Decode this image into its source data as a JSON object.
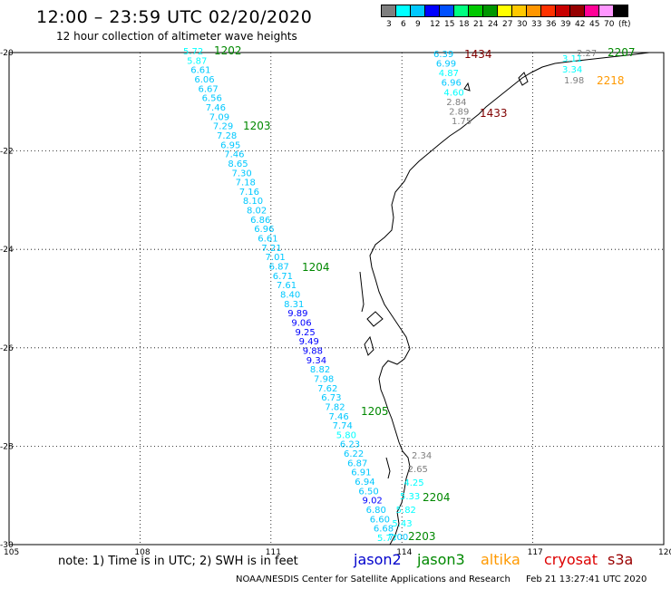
{
  "header": {
    "title": "12:00 – 23:59 UTC 02/20/2020",
    "subtitle": "12 hour collection of altimeter wave heights"
  },
  "legend": {
    "colors": [
      "#7f7f7f",
      "#00ffff",
      "#00c8ff",
      "#0000ff",
      "#0050ff",
      "#00ff80",
      "#00c800",
      "#009600",
      "#ffff00",
      "#ffc800",
      "#ff9600",
      "#ff3200",
      "#c80000",
      "#960000",
      "#ff0096",
      "#ff96ff",
      "#000000"
    ],
    "labels": [
      "3",
      "6",
      "9",
      "12",
      "15",
      "18",
      "21",
      "24",
      "27",
      "30",
      "33",
      "36",
      "39",
      "42",
      "45",
      "70",
      "(ft)"
    ]
  },
  "map": {
    "lon_ticks": [
      "105",
      "108",
      "111",
      "114",
      "117",
      "120"
    ],
    "lat_ticks": [
      "-20",
      "-22",
      "-24",
      "-26",
      "-28",
      "-30"
    ]
  },
  "tracks": {
    "main": {
      "values": [
        "5.72",
        "5.87",
        "6.61",
        "6.06",
        "6.67",
        "6.56",
        "7.46",
        "7.09",
        "7.29",
        "7.28",
        "6.95",
        "7.46",
        "8.65",
        "7.30",
        "7.18",
        "7.16",
        "8.10",
        "8.02",
        "6.86",
        "6.96",
        "6.61",
        "7.21",
        "7.01",
        "6.87",
        "6.71",
        "7.61",
        "8.40",
        "8.31",
        "9.89",
        "9.06",
        "9.25",
        "9.49",
        "9.88",
        "9.34",
        "8.82",
        "7.98",
        "7.62",
        "6.73",
        "7.82",
        "7.46",
        "7.74",
        "5.80",
        "6.23",
        "6.22",
        "6.87",
        "6.91",
        "6.94",
        "6.50",
        "9.02",
        "6.80",
        "6.60",
        "6.68",
        "5.77"
      ],
      "times": [
        {
          "text": "1202",
          "color": "#008800"
        },
        {
          "text": "1203",
          "color": "#008800"
        },
        {
          "text": "1204",
          "color": "#008800"
        },
        {
          "text": "1205",
          "color": "#008800"
        }
      ]
    },
    "coastal_south": {
      "values": [
        "2.34",
        "2.65",
        "4.25",
        "5.33",
        "5.82",
        "5.43",
        "7.00"
      ],
      "times": [
        {
          "text": "2204",
          "color": "#008800"
        },
        {
          "text": "2203",
          "color": "#008800"
        }
      ]
    },
    "north_a": {
      "values": [
        "6.39",
        "6.99",
        "4.87",
        "6.96",
        "4.60",
        "2.84",
        "2.89",
        "1.75"
      ],
      "times": [
        {
          "text": "1434",
          "color": "#800000"
        },
        {
          "text": "1433",
          "color": "#800000"
        }
      ]
    },
    "north_b": {
      "values": [
        "2.27",
        "3.11",
        "3.34",
        "1.98"
      ],
      "times": [
        {
          "text": "2207",
          "color": "#008800"
        },
        {
          "text": "2218",
          "color": "#ff9900"
        }
      ]
    }
  },
  "footer": {
    "note": "note:  1) Time is in UTC;  2) SWH is in feet",
    "satellites": [
      {
        "name": "jason2",
        "color": "#0000cc"
      },
      {
        "name": "jason3",
        "color": "#008800"
      },
      {
        "name": "altika",
        "color": "#ff9900"
      },
      {
        "name": "cryosat",
        "color": "#dd0000"
      },
      {
        "name": "s3a",
        "color": "#990000"
      }
    ],
    "credit": "NOAA/NESDIS Center for Satellite Applications and Research",
    "timestamp": "Feb 21 13:27:41 UTC 2020"
  }
}
